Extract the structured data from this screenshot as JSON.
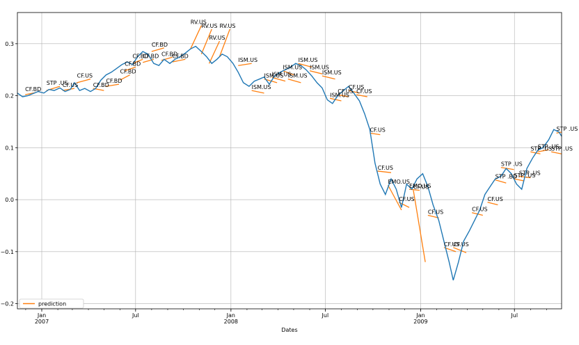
{
  "chart_data": {
    "type": "line",
    "title": "",
    "xlabel": "Dates",
    "ylabel": "",
    "xlim": [
      "2006-11-15",
      "2009-09-30"
    ],
    "ylim": [
      -0.21,
      0.36
    ],
    "grid": true,
    "legend_position": "lower-left",
    "x_ticks_major": [
      {
        "date": "2007-01-01",
        "label": "Jan",
        "sub": "2007"
      },
      {
        "date": "2007-07-01",
        "label": "Jul",
        "sub": ""
      },
      {
        "date": "2008-01-01",
        "label": "Jan",
        "sub": "2008"
      },
      {
        "date": "2008-07-01",
        "label": "Jul",
        "sub": ""
      },
      {
        "date": "2009-01-01",
        "label": "Jan",
        "sub": "2009"
      },
      {
        "date": "2009-07-01",
        "label": "Jul",
        "sub": ""
      }
    ],
    "y_ticks": [
      {
        "value": 0.3,
        "label": "0.3"
      },
      {
        "value": 0.2,
        "label": "0.2"
      },
      {
        "value": 0.1,
        "label": "0.1"
      },
      {
        "value": 0.0,
        "label": "0.0"
      },
      {
        "value": -0.1,
        "label": "−0.1"
      },
      {
        "value": -0.2,
        "label": "−0.2"
      }
    ],
    "colors": {
      "series": "#1f77b4",
      "prediction": "#ff7f0e",
      "grid": "#b0b0b0"
    },
    "series": [
      {
        "color": "#1f77b4",
        "points": [
          [
            "2006-11-15",
            0.205
          ],
          [
            "2006-11-25",
            0.198
          ],
          [
            "2006-12-05",
            0.2
          ],
          [
            "2006-12-15",
            0.204
          ],
          [
            "2006-12-25",
            0.208
          ],
          [
            "2007-01-05",
            0.205
          ],
          [
            "2007-01-15",
            0.212
          ],
          [
            "2007-01-25",
            0.21
          ],
          [
            "2007-02-05",
            0.215
          ],
          [
            "2007-02-15",
            0.208
          ],
          [
            "2007-02-25",
            0.212
          ],
          [
            "2007-03-05",
            0.225
          ],
          [
            "2007-03-15",
            0.21
          ],
          [
            "2007-03-25",
            0.214
          ],
          [
            "2007-04-05",
            0.208
          ],
          [
            "2007-04-15",
            0.214
          ],
          [
            "2007-04-25",
            0.23
          ],
          [
            "2007-05-05",
            0.24
          ],
          [
            "2007-05-15",
            0.245
          ],
          [
            "2007-05-25",
            0.252
          ],
          [
            "2007-06-05",
            0.26
          ],
          [
            "2007-06-15",
            0.265
          ],
          [
            "2007-06-25",
            0.26
          ],
          [
            "2007-07-05",
            0.275
          ],
          [
            "2007-07-15",
            0.285
          ],
          [
            "2007-07-25",
            0.28
          ],
          [
            "2007-08-05",
            0.262
          ],
          [
            "2007-08-15",
            0.258
          ],
          [
            "2007-08-25",
            0.27
          ],
          [
            "2007-09-05",
            0.262
          ],
          [
            "2007-09-15",
            0.27
          ],
          [
            "2007-09-25",
            0.275
          ],
          [
            "2007-10-05",
            0.282
          ],
          [
            "2007-10-15",
            0.29
          ],
          [
            "2007-10-25",
            0.295
          ],
          [
            "2007-11-05",
            0.285
          ],
          [
            "2007-11-15",
            0.275
          ],
          [
            "2007-11-25",
            0.262
          ],
          [
            "2007-12-05",
            0.27
          ],
          [
            "2007-12-15",
            0.28
          ],
          [
            "2007-12-25",
            0.275
          ],
          [
            "2008-01-05",
            0.262
          ],
          [
            "2008-01-15",
            0.245
          ],
          [
            "2008-01-25",
            0.225
          ],
          [
            "2008-02-05",
            0.218
          ],
          [
            "2008-02-15",
            0.228
          ],
          [
            "2008-02-25",
            0.232
          ],
          [
            "2008-03-05",
            0.236
          ],
          [
            "2008-03-15",
            0.222
          ],
          [
            "2008-03-25",
            0.238
          ],
          [
            "2008-04-05",
            0.245
          ],
          [
            "2008-04-15",
            0.25
          ],
          [
            "2008-04-25",
            0.255
          ],
          [
            "2008-05-05",
            0.262
          ],
          [
            "2008-05-15",
            0.258
          ],
          [
            "2008-05-25",
            0.25
          ],
          [
            "2008-06-05",
            0.238
          ],
          [
            "2008-06-15",
            0.225
          ],
          [
            "2008-06-25",
            0.215
          ],
          [
            "2008-07-05",
            0.192
          ],
          [
            "2008-07-15",
            0.185
          ],
          [
            "2008-07-25",
            0.2
          ],
          [
            "2008-08-05",
            0.21
          ],
          [
            "2008-08-15",
            0.218
          ],
          [
            "2008-08-25",
            0.205
          ],
          [
            "2008-09-05",
            0.19
          ],
          [
            "2008-09-15",
            0.165
          ],
          [
            "2008-09-25",
            0.135
          ],
          [
            "2008-10-05",
            0.07
          ],
          [
            "2008-10-15",
            0.03
          ],
          [
            "2008-10-25",
            0.01
          ],
          [
            "2008-11-05",
            0.04
          ],
          [
            "2008-11-15",
            0.02
          ],
          [
            "2008-11-25",
            -0.015
          ],
          [
            "2008-12-05",
            0.03
          ],
          [
            "2008-12-15",
            0.02
          ],
          [
            "2008-12-25",
            0.04
          ],
          [
            "2009-01-05",
            0.05
          ],
          [
            "2009-01-15",
            0.025
          ],
          [
            "2009-01-25",
            -0.01
          ],
          [
            "2009-02-05",
            -0.04
          ],
          [
            "2009-02-15",
            -0.08
          ],
          [
            "2009-02-25",
            -0.12
          ],
          [
            "2009-03-05",
            -0.155
          ],
          [
            "2009-03-15",
            -0.12
          ],
          [
            "2009-03-25",
            -0.08
          ],
          [
            "2009-04-05",
            -0.06
          ],
          [
            "2009-04-15",
            -0.04
          ],
          [
            "2009-04-25",
            -0.02
          ],
          [
            "2009-05-05",
            0.01
          ],
          [
            "2009-05-15",
            0.025
          ],
          [
            "2009-05-25",
            0.04
          ],
          [
            "2009-06-05",
            0.045
          ],
          [
            "2009-06-15",
            0.06
          ],
          [
            "2009-06-25",
            0.05
          ],
          [
            "2009-07-05",
            0.03
          ],
          [
            "2009-07-15",
            0.02
          ],
          [
            "2009-07-25",
            0.06
          ],
          [
            "2009-08-05",
            0.08
          ],
          [
            "2009-08-15",
            0.095
          ],
          [
            "2009-08-25",
            0.1
          ],
          [
            "2009-09-05",
            0.115
          ],
          [
            "2009-09-15",
            0.135
          ],
          [
            "2009-09-25",
            0.13
          ],
          [
            "2009-09-30",
            0.122
          ]
        ]
      }
    ],
    "prediction_legend": "prediction",
    "predictions": [
      {
        "x": [
          "2006-11-30",
          "2006-12-20"
        ],
        "y": [
          0.202,
          0.206
        ],
        "label": "CF.BD"
      },
      {
        "x": [
          "2007-01-10",
          "2007-02-05"
        ],
        "y": [
          0.21,
          0.218
        ],
        "label": "STP .US"
      },
      {
        "x": [
          "2007-02-10",
          "2007-03-05"
        ],
        "y": [
          0.21,
          0.214
        ],
        "label": "CF.US"
      },
      {
        "x": [
          "2007-03-10",
          "2007-04-05"
        ],
        "y": [
          0.225,
          0.232
        ],
        "label": "CF.US"
      },
      {
        "x": [
          "2007-04-10",
          "2007-05-01"
        ],
        "y": [
          0.214,
          0.21
        ],
        "label": "CF.BD"
      },
      {
        "x": [
          "2007-05-05",
          "2007-05-30"
        ],
        "y": [
          0.218,
          0.222
        ],
        "label": "CF.BD"
      },
      {
        "x": [
          "2007-06-01",
          "2007-06-20"
        ],
        "y": [
          0.23,
          0.24
        ],
        "label": "CF.BD"
      },
      {
        "x": [
          "2007-06-10",
          "2007-07-01"
        ],
        "y": [
          0.248,
          0.255
        ],
        "label": "CF.BD"
      },
      {
        "x": [
          "2007-06-25",
          "2007-07-15"
        ],
        "y": [
          0.262,
          0.27
        ],
        "label": "CF.BD"
      },
      {
        "x": [
          "2007-07-15",
          "2007-08-05"
        ],
        "y": [
          0.264,
          0.27
        ],
        "label": "CF.BD"
      },
      {
        "x": [
          "2007-08-01",
          "2007-08-25"
        ],
        "y": [
          0.285,
          0.292
        ],
        "label": "CF.BD"
      },
      {
        "x": [
          "2007-08-20",
          "2007-09-10"
        ],
        "y": [
          0.268,
          0.274
        ],
        "label": "CF.BD"
      },
      {
        "x": [
          "2007-09-10",
          "2007-10-05"
        ],
        "y": [
          0.265,
          0.27
        ],
        "label": "CF.BD"
      },
      {
        "x": [
          "2007-10-15",
          "2007-11-05"
        ],
        "y": [
          0.29,
          0.335
        ],
        "label": "RV.US"
      },
      {
        "x": [
          "2007-11-05",
          "2007-11-25"
        ],
        "y": [
          0.28,
          0.328
        ],
        "label": "RV.US"
      },
      {
        "x": [
          "2007-11-20",
          "2007-12-10"
        ],
        "y": [
          0.262,
          0.305
        ],
        "label": "RV.US"
      },
      {
        "x": [
          "2007-12-10",
          "2007-12-30"
        ],
        "y": [
          0.275,
          0.328
        ],
        "label": "RV.US"
      },
      {
        "x": [
          "2008-01-15",
          "2008-02-10"
        ],
        "y": [
          0.258,
          0.262
        ],
        "label": "ISM.US"
      },
      {
        "x": [
          "2008-02-10",
          "2008-03-05"
        ],
        "y": [
          0.21,
          0.205
        ],
        "label": "ISM.US"
      },
      {
        "x": [
          "2008-03-05",
          "2008-03-30"
        ],
        "y": [
          0.232,
          0.225
        ],
        "label": "ISM.US"
      },
      {
        "x": [
          "2008-03-20",
          "2008-04-15"
        ],
        "y": [
          0.235,
          0.228
        ],
        "label": "ISM.US"
      },
      {
        "x": [
          "2008-04-10",
          "2008-05-01"
        ],
        "y": [
          0.248,
          0.24
        ],
        "label": "ISM.US"
      },
      {
        "x": [
          "2008-04-20",
          "2008-05-15"
        ],
        "y": [
          0.232,
          0.225
        ],
        "label": "ISM.US"
      },
      {
        "x": [
          "2008-05-10",
          "2008-06-05"
        ],
        "y": [
          0.262,
          0.255
        ],
        "label": "ISM.US"
      },
      {
        "x": [
          "2008-06-01",
          "2008-06-25"
        ],
        "y": [
          0.248,
          0.242
        ],
        "label": "ISM.US"
      },
      {
        "x": [
          "2008-06-25",
          "2008-07-20"
        ],
        "y": [
          0.238,
          0.232
        ],
        "label": "ISM.US"
      },
      {
        "x": [
          "2008-07-10",
          "2008-08-01"
        ],
        "y": [
          0.195,
          0.19
        ],
        "label": "ISM.US"
      },
      {
        "x": [
          "2008-07-25",
          "2008-08-15"
        ],
        "y": [
          0.202,
          0.198
        ],
        "label": "CF.US"
      },
      {
        "x": [
          "2008-08-15",
          "2008-09-05"
        ],
        "y": [
          0.21,
          0.205
        ],
        "label": "CF.US"
      },
      {
        "x": [
          "2008-08-30",
          "2008-09-20"
        ],
        "y": [
          0.202,
          0.198
        ],
        "label": "CF.US"
      },
      {
        "x": [
          "2008-09-25",
          "2008-10-15"
        ],
        "y": [
          0.128,
          0.125
        ],
        "label": "CF.US"
      },
      {
        "x": [
          "2008-10-10",
          "2008-11-05"
        ],
        "y": [
          0.055,
          0.052
        ],
        "label": "CF.US"
      },
      {
        "x": [
          "2008-10-30",
          "2008-11-25"
        ],
        "y": [
          0.028,
          -0.02
        ],
        "label": "EMO.US"
      },
      {
        "x": [
          "2008-11-20",
          "2008-12-10"
        ],
        "y": [
          -0.005,
          -0.015
        ],
        "label": "CF.US"
      },
      {
        "x": [
          "2008-12-10",
          "2008-12-30"
        ],
        "y": [
          0.02,
          0.018
        ],
        "label": "EMO.US"
      },
      {
        "x": [
          "2008-12-18",
          "2009-01-10"
        ],
        "y": [
          0.018,
          -0.12
        ],
        "label": "CF.US"
      },
      {
        "x": [
          "2009-01-15",
          "2009-02-05"
        ],
        "y": [
          -0.03,
          -0.035
        ],
        "label": "CF.US"
      },
      {
        "x": [
          "2009-02-15",
          "2009-03-10"
        ],
        "y": [
          -0.092,
          -0.1
        ],
        "label": "CF.US"
      },
      {
        "x": [
          "2009-03-05",
          "2009-03-30"
        ],
        "y": [
          -0.092,
          -0.102
        ],
        "label": "CF.US"
      },
      {
        "x": [
          "2009-04-10",
          "2009-05-01"
        ],
        "y": [
          -0.025,
          -0.03
        ],
        "label": "CF.US"
      },
      {
        "x": [
          "2009-05-10",
          "2009-05-30"
        ],
        "y": [
          -0.005,
          -0.01
        ],
        "label": "CF.US"
      },
      {
        "x": [
          "2009-05-25",
          "2009-06-15"
        ],
        "y": [
          0.038,
          0.032
        ],
        "label": "STP .BD"
      },
      {
        "x": [
          "2009-06-05",
          "2009-06-30"
        ],
        "y": [
          0.062,
          0.058
        ],
        "label": "STP .US"
      },
      {
        "x": [
          "2009-06-30",
          "2009-07-20"
        ],
        "y": [
          0.04,
          0.036
        ],
        "label": "STP .US"
      },
      {
        "x": [
          "2009-07-10",
          "2009-08-01"
        ],
        "y": [
          0.045,
          0.042
        ],
        "label": "STP .US"
      },
      {
        "x": [
          "2009-08-01",
          "2009-08-20"
        ],
        "y": [
          0.092,
          0.088
        ],
        "label": "STP .US"
      },
      {
        "x": [
          "2009-08-15",
          "2009-09-05"
        ],
        "y": [
          0.092,
          0.096
        ],
        "label": "STP .US"
      },
      {
        "x": [
          "2009-09-10",
          "2009-09-30"
        ],
        "y": [
          0.092,
          0.088
        ],
        "label": "STP .US"
      },
      {
        "x": [
          "2009-09-20",
          "2009-09-30"
        ],
        "y": [
          0.128,
          0.13
        ],
        "label": "STP .US"
      }
    ]
  }
}
